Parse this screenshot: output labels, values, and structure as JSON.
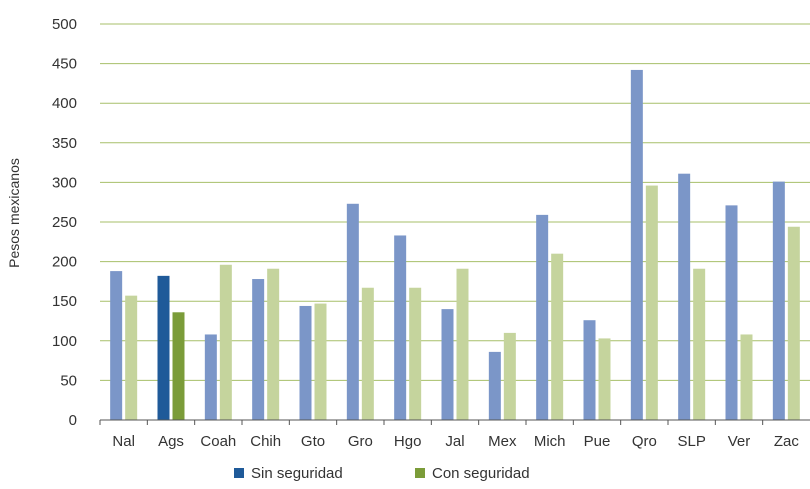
{
  "chart_data": {
    "type": "bar",
    "title": "",
    "xlabel": "",
    "ylabel": "Pesos mexicanos",
    "ylim": [
      0,
      500
    ],
    "yticks": [
      0,
      50,
      100,
      150,
      200,
      250,
      300,
      350,
      400,
      450,
      500
    ],
    "grid": true,
    "legend_position": "bottom",
    "categories": [
      "Nal",
      "Ags",
      "Coah",
      "Chih",
      "Gto",
      "Gro",
      "Hgo",
      "Jal",
      "Mex",
      "Mich",
      "Pue",
      "Qro",
      "SLP",
      "Ver",
      "Zac"
    ],
    "series": [
      {
        "name": "Sin seguridad",
        "color": "#7b96c8",
        "highlight_color": "#1f5a99",
        "values": [
          188,
          182,
          108,
          178,
          144,
          273,
          233,
          140,
          86,
          259,
          126,
          442,
          311,
          271,
          301
        ]
      },
      {
        "name": "Con seguridad",
        "color": "#c5d49d",
        "highlight_color": "#7b9c39",
        "values": [
          157,
          136,
          196,
          191,
          147,
          167,
          167,
          191,
          110,
          210,
          103,
          296,
          191,
          108,
          244
        ]
      }
    ],
    "highlighted_category": "Ags",
    "colors": {
      "grid": "#a7bf6a",
      "axis": "#555555"
    }
  }
}
